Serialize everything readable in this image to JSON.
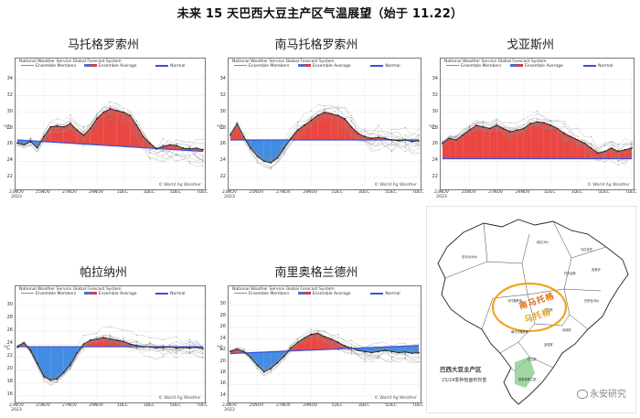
{
  "page_title": "未来 15 天巴西大豆主产区气温展望（始于 11.22）",
  "legend": {
    "system": "National Weather Service Global Forecast System",
    "members": "Ensemble Members",
    "average": "Ensemble Average",
    "normal": "Normal"
  },
  "credit": "© World Ag Weather",
  "y_label": "°C",
  "x_ticks": [
    "23NOV\n2023",
    "25NOV",
    "27NOV",
    "29NOV",
    "1DEC",
    "3DEC",
    "5DEC",
    "7DEC"
  ],
  "colors": {
    "warm": "#e8332e",
    "cold": "#2f7fe0",
    "normal": "#3b4fd8",
    "average": "#222222",
    "members": "#8c8c8c"
  },
  "chart_data": [
    {
      "type": "line",
      "title": "马托格罗索州",
      "ylabel": "°C",
      "ylim": [
        21,
        35
      ],
      "yticks": [
        22,
        24,
        26,
        28,
        30,
        32,
        34
      ],
      "x": [
        0,
        1,
        2,
        3,
        4,
        5,
        6,
        7,
        8,
        9,
        10,
        11,
        12,
        13,
        14,
        15,
        16,
        17,
        18,
        19,
        20,
        21,
        22,
        23,
        24,
        25,
        26,
        27,
        28
      ],
      "ensemble_average": [
        26.2,
        26.0,
        26.4,
        25.6,
        27.0,
        28.2,
        28.3,
        28.2,
        28.6,
        27.8,
        27.2,
        28.0,
        29.2,
        30.0,
        30.4,
        30.2,
        30.0,
        29.6,
        28.4,
        27.0,
        26.2,
        25.5,
        25.8,
        26.0,
        25.9,
        25.6,
        25.5,
        25.6,
        25.4
      ],
      "normal": [
        26.6,
        26.55,
        26.5,
        26.45,
        26.4,
        26.35,
        26.3,
        26.25,
        26.2,
        26.15,
        26.1,
        26.05,
        26.0,
        25.95,
        25.9,
        25.85,
        25.8,
        25.75,
        25.7,
        25.65,
        25.6,
        25.55,
        25.5,
        25.45,
        25.4,
        25.35,
        25.3,
        25.25,
        25.2
      ]
    },
    {
      "type": "line",
      "title": "南马托格罗索州",
      "ylabel": "°C",
      "ylim": [
        21,
        35
      ],
      "yticks": [
        22,
        24,
        26,
        28,
        30,
        32,
        34
      ],
      "x": [
        0,
        1,
        2,
        3,
        4,
        5,
        6,
        7,
        8,
        9,
        10,
        11,
        12,
        13,
        14,
        15,
        16,
        17,
        18,
        19,
        20,
        21,
        22,
        23,
        24,
        25,
        26,
        27,
        28
      ],
      "ensemble_average": [
        27.2,
        28.6,
        27.0,
        25.6,
        24.6,
        24.0,
        23.8,
        24.4,
        25.6,
        26.8,
        27.8,
        28.4,
        29.0,
        29.6,
        30.0,
        29.8,
        29.6,
        29.2,
        28.2,
        27.4,
        27.0,
        26.8,
        26.9,
        26.8,
        26.6,
        26.5,
        26.6,
        26.4,
        26.5
      ],
      "normal": [
        26.6,
        26.6,
        26.6,
        26.6,
        26.6,
        26.6,
        26.6,
        26.6,
        26.6,
        26.6,
        26.6,
        26.6,
        26.6,
        26.6,
        26.6,
        26.6,
        26.6,
        26.6,
        26.6,
        26.6,
        26.6,
        26.6,
        26.6,
        26.6,
        26.6,
        26.6,
        26.6,
        26.6,
        26.6
      ]
    },
    {
      "type": "line",
      "title": "戈亚斯州",
      "ylabel": "°C",
      "ylim": [
        21,
        35
      ],
      "yticks": [
        22,
        24,
        26,
        28,
        30,
        32,
        34
      ],
      "x": [
        0,
        1,
        2,
        3,
        4,
        5,
        6,
        7,
        8,
        9,
        10,
        11,
        12,
        13,
        14,
        15,
        16,
        17,
        18,
        19,
        20,
        21,
        22,
        23,
        24,
        25,
        26,
        27,
        28
      ],
      "ensemble_average": [
        26.2,
        26.8,
        26.6,
        27.2,
        27.8,
        28.4,
        28.2,
        28.0,
        28.4,
        28.0,
        27.6,
        27.8,
        28.0,
        28.6,
        28.8,
        28.7,
        28.4,
        28.0,
        27.4,
        27.0,
        26.6,
        26.2,
        25.6,
        25.0,
        25.2,
        25.6,
        25.2,
        25.4,
        25.6
      ],
      "normal": [
        24.3,
        24.3,
        24.3,
        24.3,
        24.3,
        24.3,
        24.3,
        24.3,
        24.3,
        24.3,
        24.3,
        24.3,
        24.3,
        24.3,
        24.3,
        24.3,
        24.3,
        24.3,
        24.3,
        24.3,
        24.3,
        24.3,
        24.3,
        24.3,
        24.3,
        24.3,
        24.3,
        24.3,
        24.3
      ]
    },
    {
      "type": "line",
      "title": "帕拉纳州",
      "ylabel": "°C",
      "ylim": [
        15.5,
        31
      ],
      "yticks": [
        16,
        18,
        20,
        22,
        24,
        26,
        28,
        30
      ],
      "x": [
        0,
        1,
        2,
        3,
        4,
        5,
        6,
        7,
        8,
        9,
        10,
        11,
        12,
        13,
        14,
        15,
        16,
        17,
        18,
        19,
        20,
        21,
        22,
        23,
        24,
        25,
        26,
        27,
        28
      ],
      "ensemble_average": [
        23.6,
        24.2,
        23.0,
        21.0,
        19.0,
        18.4,
        18.6,
        19.6,
        20.8,
        22.6,
        24.0,
        24.6,
        24.8,
        25.0,
        24.8,
        24.6,
        24.4,
        24.0,
        23.8,
        23.6,
        23.6,
        23.4,
        23.5,
        23.6,
        23.4,
        23.5,
        23.4,
        23.5,
        23.3
      ],
      "normal": [
        23.6,
        23.6,
        23.6,
        23.6,
        23.6,
        23.6,
        23.6,
        23.6,
        23.6,
        23.6,
        23.6,
        23.6,
        23.6,
        23.6,
        23.6,
        23.6,
        23.6,
        23.6,
        23.6,
        23.6,
        23.6,
        23.6,
        23.6,
        23.6,
        23.6,
        23.6,
        23.6,
        23.6,
        23.6
      ]
    },
    {
      "type": "line",
      "title": "南里奥格兰德州",
      "ylabel": "°C",
      "ylim": [
        13.5,
        31
      ],
      "yticks": [
        14,
        16,
        18,
        20,
        22,
        24,
        26,
        28,
        30
      ],
      "x": [
        0,
        1,
        2,
        3,
        4,
        5,
        6,
        7,
        8,
        9,
        10,
        11,
        12,
        13,
        14,
        15,
        16,
        17,
        18,
        19,
        20,
        21,
        22,
        23,
        24,
        25,
        26,
        27,
        28
      ],
      "ensemble_average": [
        21.8,
        22.2,
        21.8,
        20.8,
        19.4,
        18.2,
        18.8,
        19.8,
        21.0,
        22.4,
        23.4,
        24.2,
        24.8,
        25.0,
        24.4,
        24.0,
        23.4,
        22.8,
        22.4,
        22.0,
        21.8,
        21.6,
        21.8,
        22.0,
        21.8,
        21.6,
        21.7,
        21.5,
        21.6
      ],
      "normal": [
        21.4,
        21.5,
        21.55,
        21.6,
        21.65,
        21.7,
        21.75,
        21.8,
        21.85,
        21.9,
        21.95,
        22.0,
        22.05,
        22.1,
        22.15,
        22.2,
        22.25,
        22.3,
        22.35,
        22.4,
        22.45,
        22.5,
        22.55,
        22.6,
        22.65,
        22.7,
        22.75,
        22.8,
        22.85
      ]
    }
  ],
  "map": {
    "caption": "巴西大豆主产区",
    "subtitle": "23/24季种植面积权重",
    "highlight": "南马托格",
    "highlight2": "马托格",
    "state_labels": [
      "亚马孙(AM)",
      "帕拉(PA)",
      "马拉尼昂",
      "皮奥伊",
      "托坎廷斯",
      "巴伊亚(BA)",
      "马托格罗索",
      "南马托格罗索",
      "戈亚斯",
      "米纳斯",
      "圣保罗",
      "巴拉那",
      "南里奥格兰德"
    ]
  },
  "watermark": "永安研究"
}
